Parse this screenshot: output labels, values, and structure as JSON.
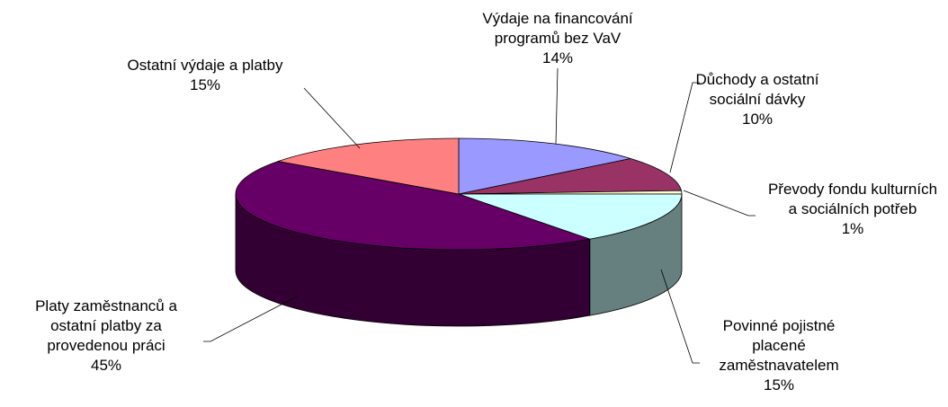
{
  "chart_data": {
    "type": "pie3d",
    "categories": [
      "Výdaje na financování programů bez VaV",
      "Důchody a ostatní sociální dávky",
      "Převody fondu kulturních a sociálních potřeb",
      "Povinné pojistné placené zaměstnavatelem",
      "Platy zaměstnanců a ostatní platby za provedenou práci",
      "Ostatní výdaje a platby"
    ],
    "values": [
      14,
      10,
      1,
      15,
      45,
      15
    ],
    "value_labels": [
      "14%",
      "10%",
      "1%",
      "15%",
      "45%",
      "15%"
    ],
    "colors": [
      "#9999ff",
      "#993366",
      "#ffffcc",
      "#ccffff",
      "#660066",
      "#ff8080"
    ]
  }
}
